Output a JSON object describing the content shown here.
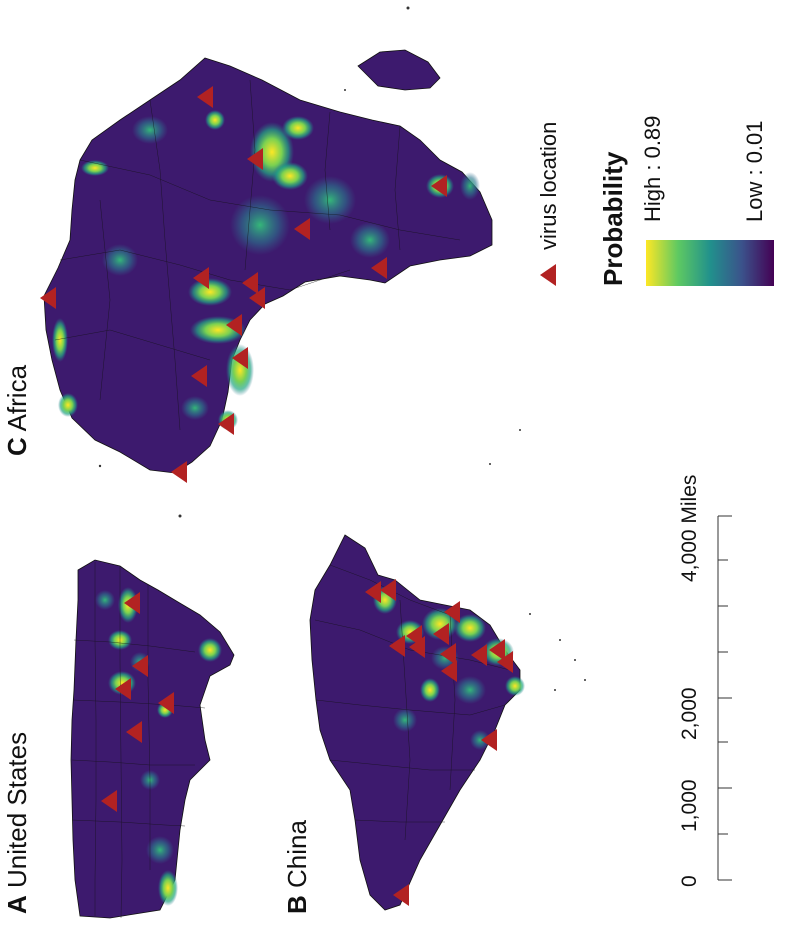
{
  "panels": [
    {
      "letter": "A",
      "name": "United States"
    },
    {
      "letter": "B",
      "name": "China"
    },
    {
      "letter": "C",
      "name": "Africa"
    }
  ],
  "legend": {
    "marker_label": "virus location",
    "marker_color": "#b22222",
    "title": "Probability",
    "high_label": "High : 0.89",
    "low_label": "Low : 0.01",
    "colormap": [
      "#fde725",
      "#5ec962",
      "#21918c",
      "#3b528b",
      "#440154"
    ],
    "land_base_color": "#3d1a6e"
  },
  "scale_bar": {
    "unit": "Miles",
    "ticks": [
      "0",
      "1,000",
      "2,000",
      "4,000 Miles"
    ]
  }
}
